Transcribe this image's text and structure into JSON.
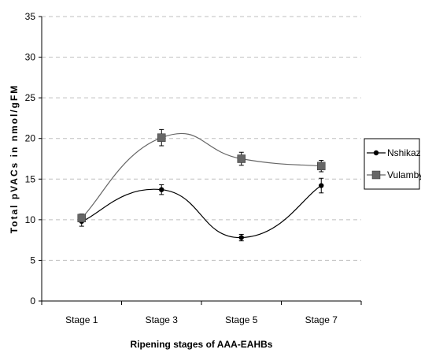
{
  "chart_data": {
    "type": "line",
    "title": "",
    "xlabel": "Ripening stages of AAA-EAHBs",
    "ylabel": "Total pVACs in nmol/gFM",
    "categories": [
      "Stage 1",
      "Stage 3",
      "Stage 5",
      "Stage 7"
    ],
    "ylim": [
      0,
      35
    ],
    "yticks": [
      "0",
      "5",
      "10",
      "15",
      "20",
      "25",
      "30",
      "35"
    ],
    "grid": true,
    "legend_position": "right",
    "series": [
      {
        "name": "Nshikazi",
        "values": [
          9.8,
          13.7,
          7.8,
          14.2
        ],
        "errors": [
          0.6,
          0.6,
          0.4,
          0.9
        ],
        "marker": "circle",
        "color": "#000000"
      },
      {
        "name": "Vulambya",
        "values": [
          10.2,
          20.1,
          17.5,
          16.6
        ],
        "errors": [
          0.5,
          1.0,
          0.8,
          0.7
        ],
        "marker": "square",
        "color": "#666666"
      }
    ]
  }
}
